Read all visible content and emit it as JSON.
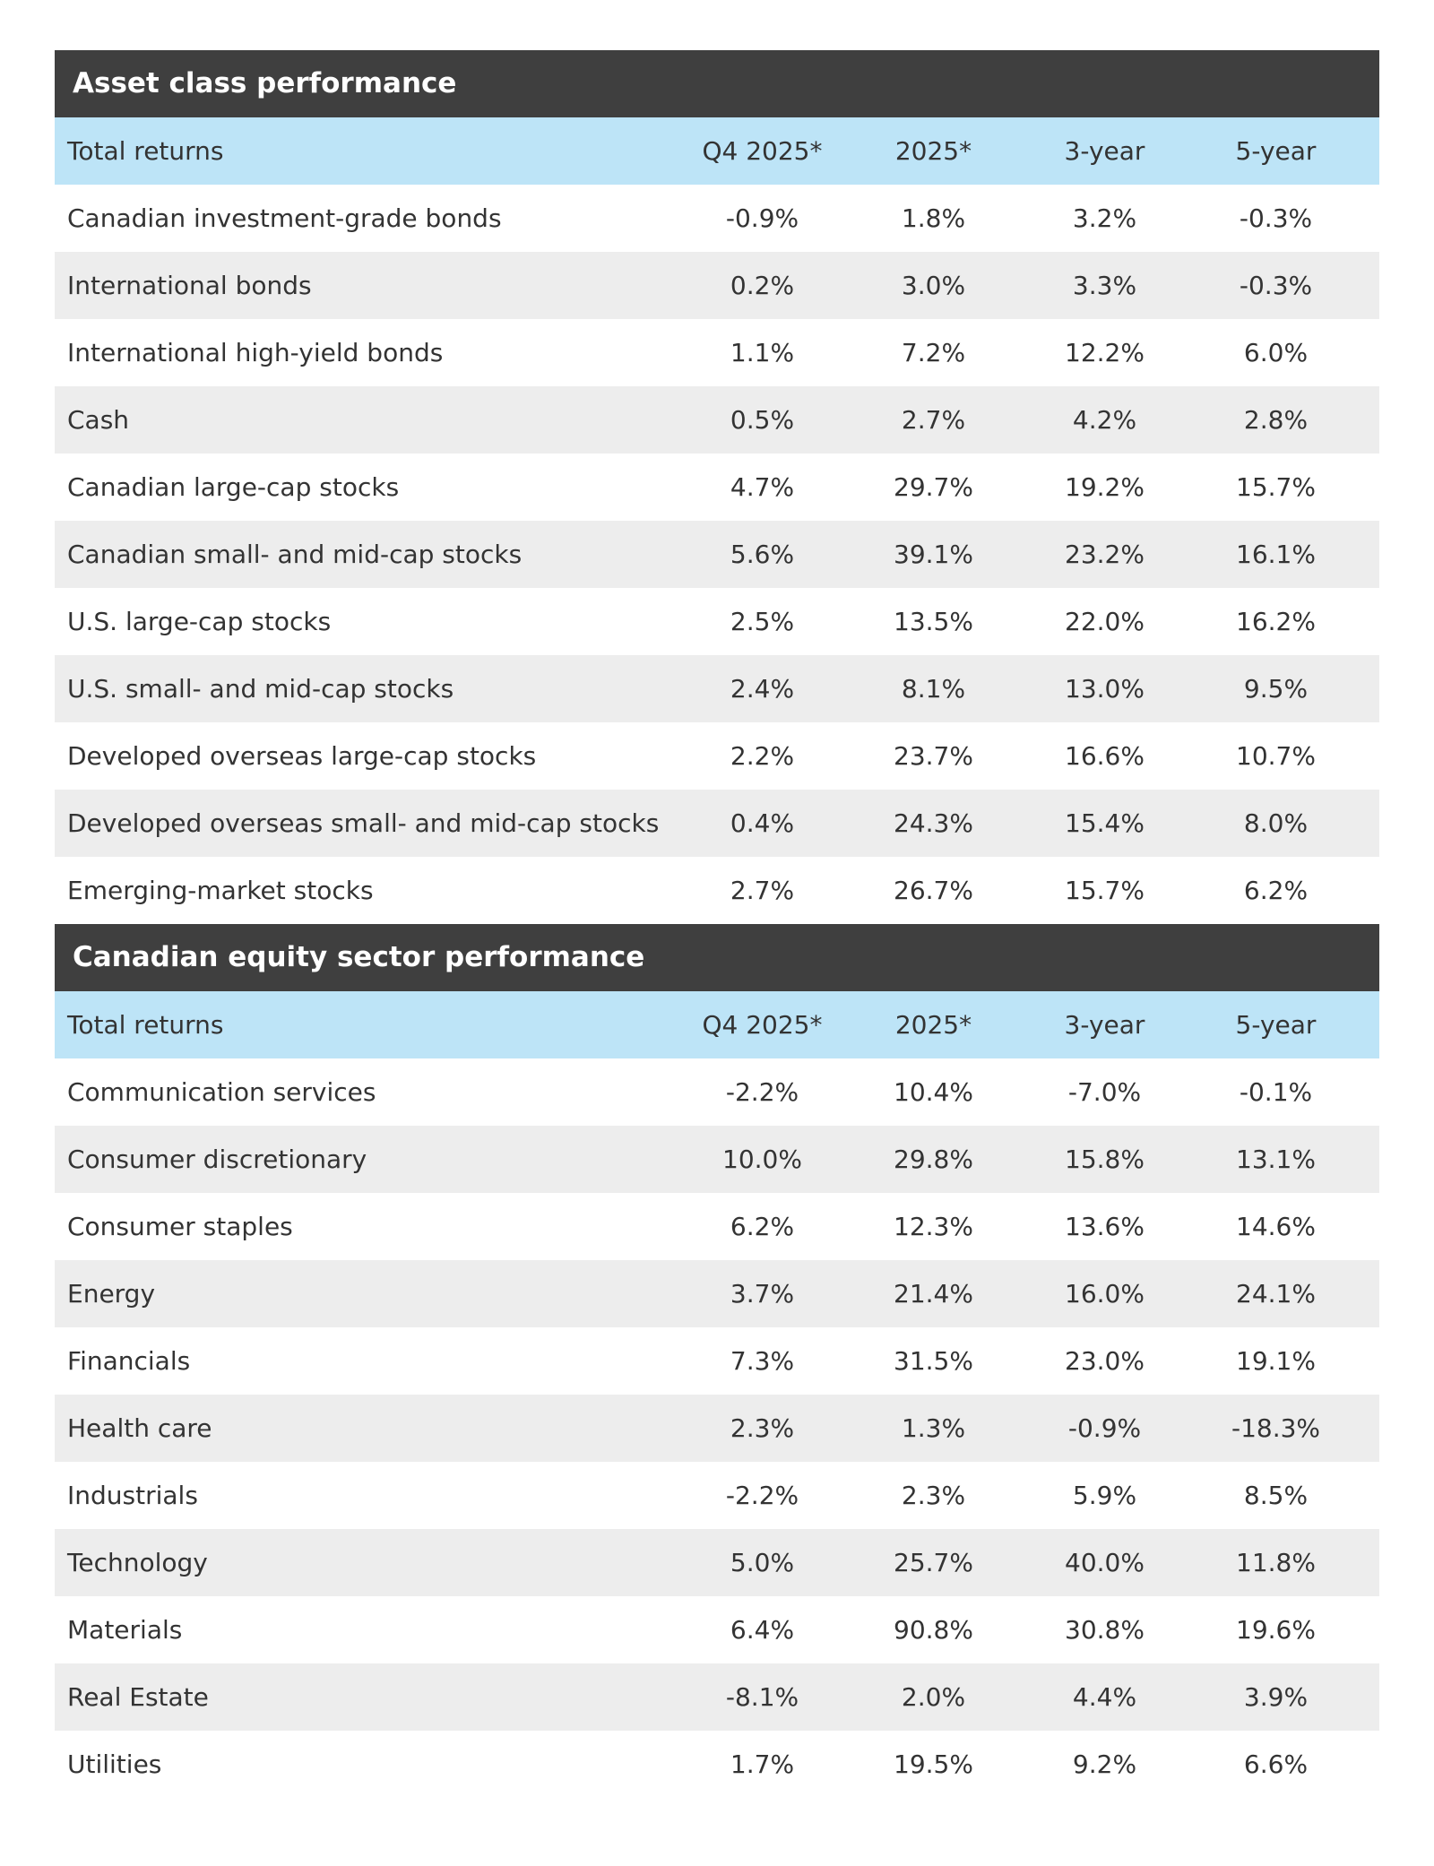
{
  "tables": [
    {
      "title": "Asset class performance",
      "header": [
        "Total returns",
        "Q4 2025*",
        "2025*",
        "3-year",
        "5-year"
      ],
      "rows": [
        [
          "Canadian investment-grade bonds",
          "-0.9%",
          "1.8%",
          "3.2%",
          "-0.3%"
        ],
        [
          "International bonds",
          "0.2%",
          "3.0%",
          "3.3%",
          "-0.3%"
        ],
        [
          "International high-yield bonds",
          "1.1%",
          "7.2%",
          "12.2%",
          "6.0%"
        ],
        [
          "Cash",
          "0.5%",
          "2.7%",
          "4.2%",
          "2.8%"
        ],
        [
          "Canadian large-cap stocks",
          "4.7%",
          "29.7%",
          "19.2%",
          "15.7%"
        ],
        [
          "Canadian small- and mid-cap stocks",
          "5.6%",
          "39.1%",
          "23.2%",
          "16.1%"
        ],
        [
          "U.S. large-cap stocks",
          "2.5%",
          "13.5%",
          "22.0%",
          "16.2%"
        ],
        [
          "U.S. small- and mid-cap stocks",
          "2.4%",
          "8.1%",
          "13.0%",
          "9.5%"
        ],
        [
          "Developed overseas large-cap stocks",
          "2.2%",
          "23.7%",
          "16.6%",
          "10.7%"
        ],
        [
          "Developed overseas small- and mid-cap stocks",
          "0.4%",
          "24.3%",
          "15.4%",
          "8.0%"
        ],
        [
          "Emerging-market stocks",
          "2.7%",
          "26.7%",
          "15.7%",
          "6.2%"
        ]
      ]
    },
    {
      "title": "Canadian equity sector performance",
      "header": [
        "Total returns",
        "Q4 2025*",
        "2025*",
        "3-year",
        "5-year"
      ],
      "rows": [
        [
          "Communication services",
          "-2.2%",
          "10.4%",
          "-7.0%",
          "-0.1%"
        ],
        [
          "Consumer discretionary",
          "10.0%",
          "29.8%",
          "15.8%",
          "13.1%"
        ],
        [
          "Consumer staples",
          "6.2%",
          "12.3%",
          "13.6%",
          "14.6%"
        ],
        [
          "Energy",
          "3.7%",
          "21.4%",
          "16.0%",
          "24.1%"
        ],
        [
          "Financials",
          "7.3%",
          "31.5%",
          "23.0%",
          "19.1%"
        ],
        [
          "Health care",
          "2.3%",
          "1.3%",
          "-0.9%",
          "-18.3%"
        ],
        [
          "Industrials",
          "-2.2%",
          "2.3%",
          "5.9%",
          "8.5%"
        ],
        [
          "Technology",
          "5.0%",
          "25.7%",
          "40.0%",
          "11.8%"
        ],
        [
          "Materials",
          "6.4%",
          "90.8%",
          "30.8%",
          "19.6%"
        ],
        [
          "Real Estate",
          "-8.1%",
          "2.0%",
          "4.4%",
          "3.9%"
        ],
        [
          "Utilities",
          "1.7%",
          "19.5%",
          "9.2%",
          "6.6%"
        ]
      ]
    }
  ],
  "colors": {
    "title_bar": "#3f3f3f",
    "header_row": "#bde4f7",
    "stripe_row": "#ededed",
    "text": "#333333"
  }
}
